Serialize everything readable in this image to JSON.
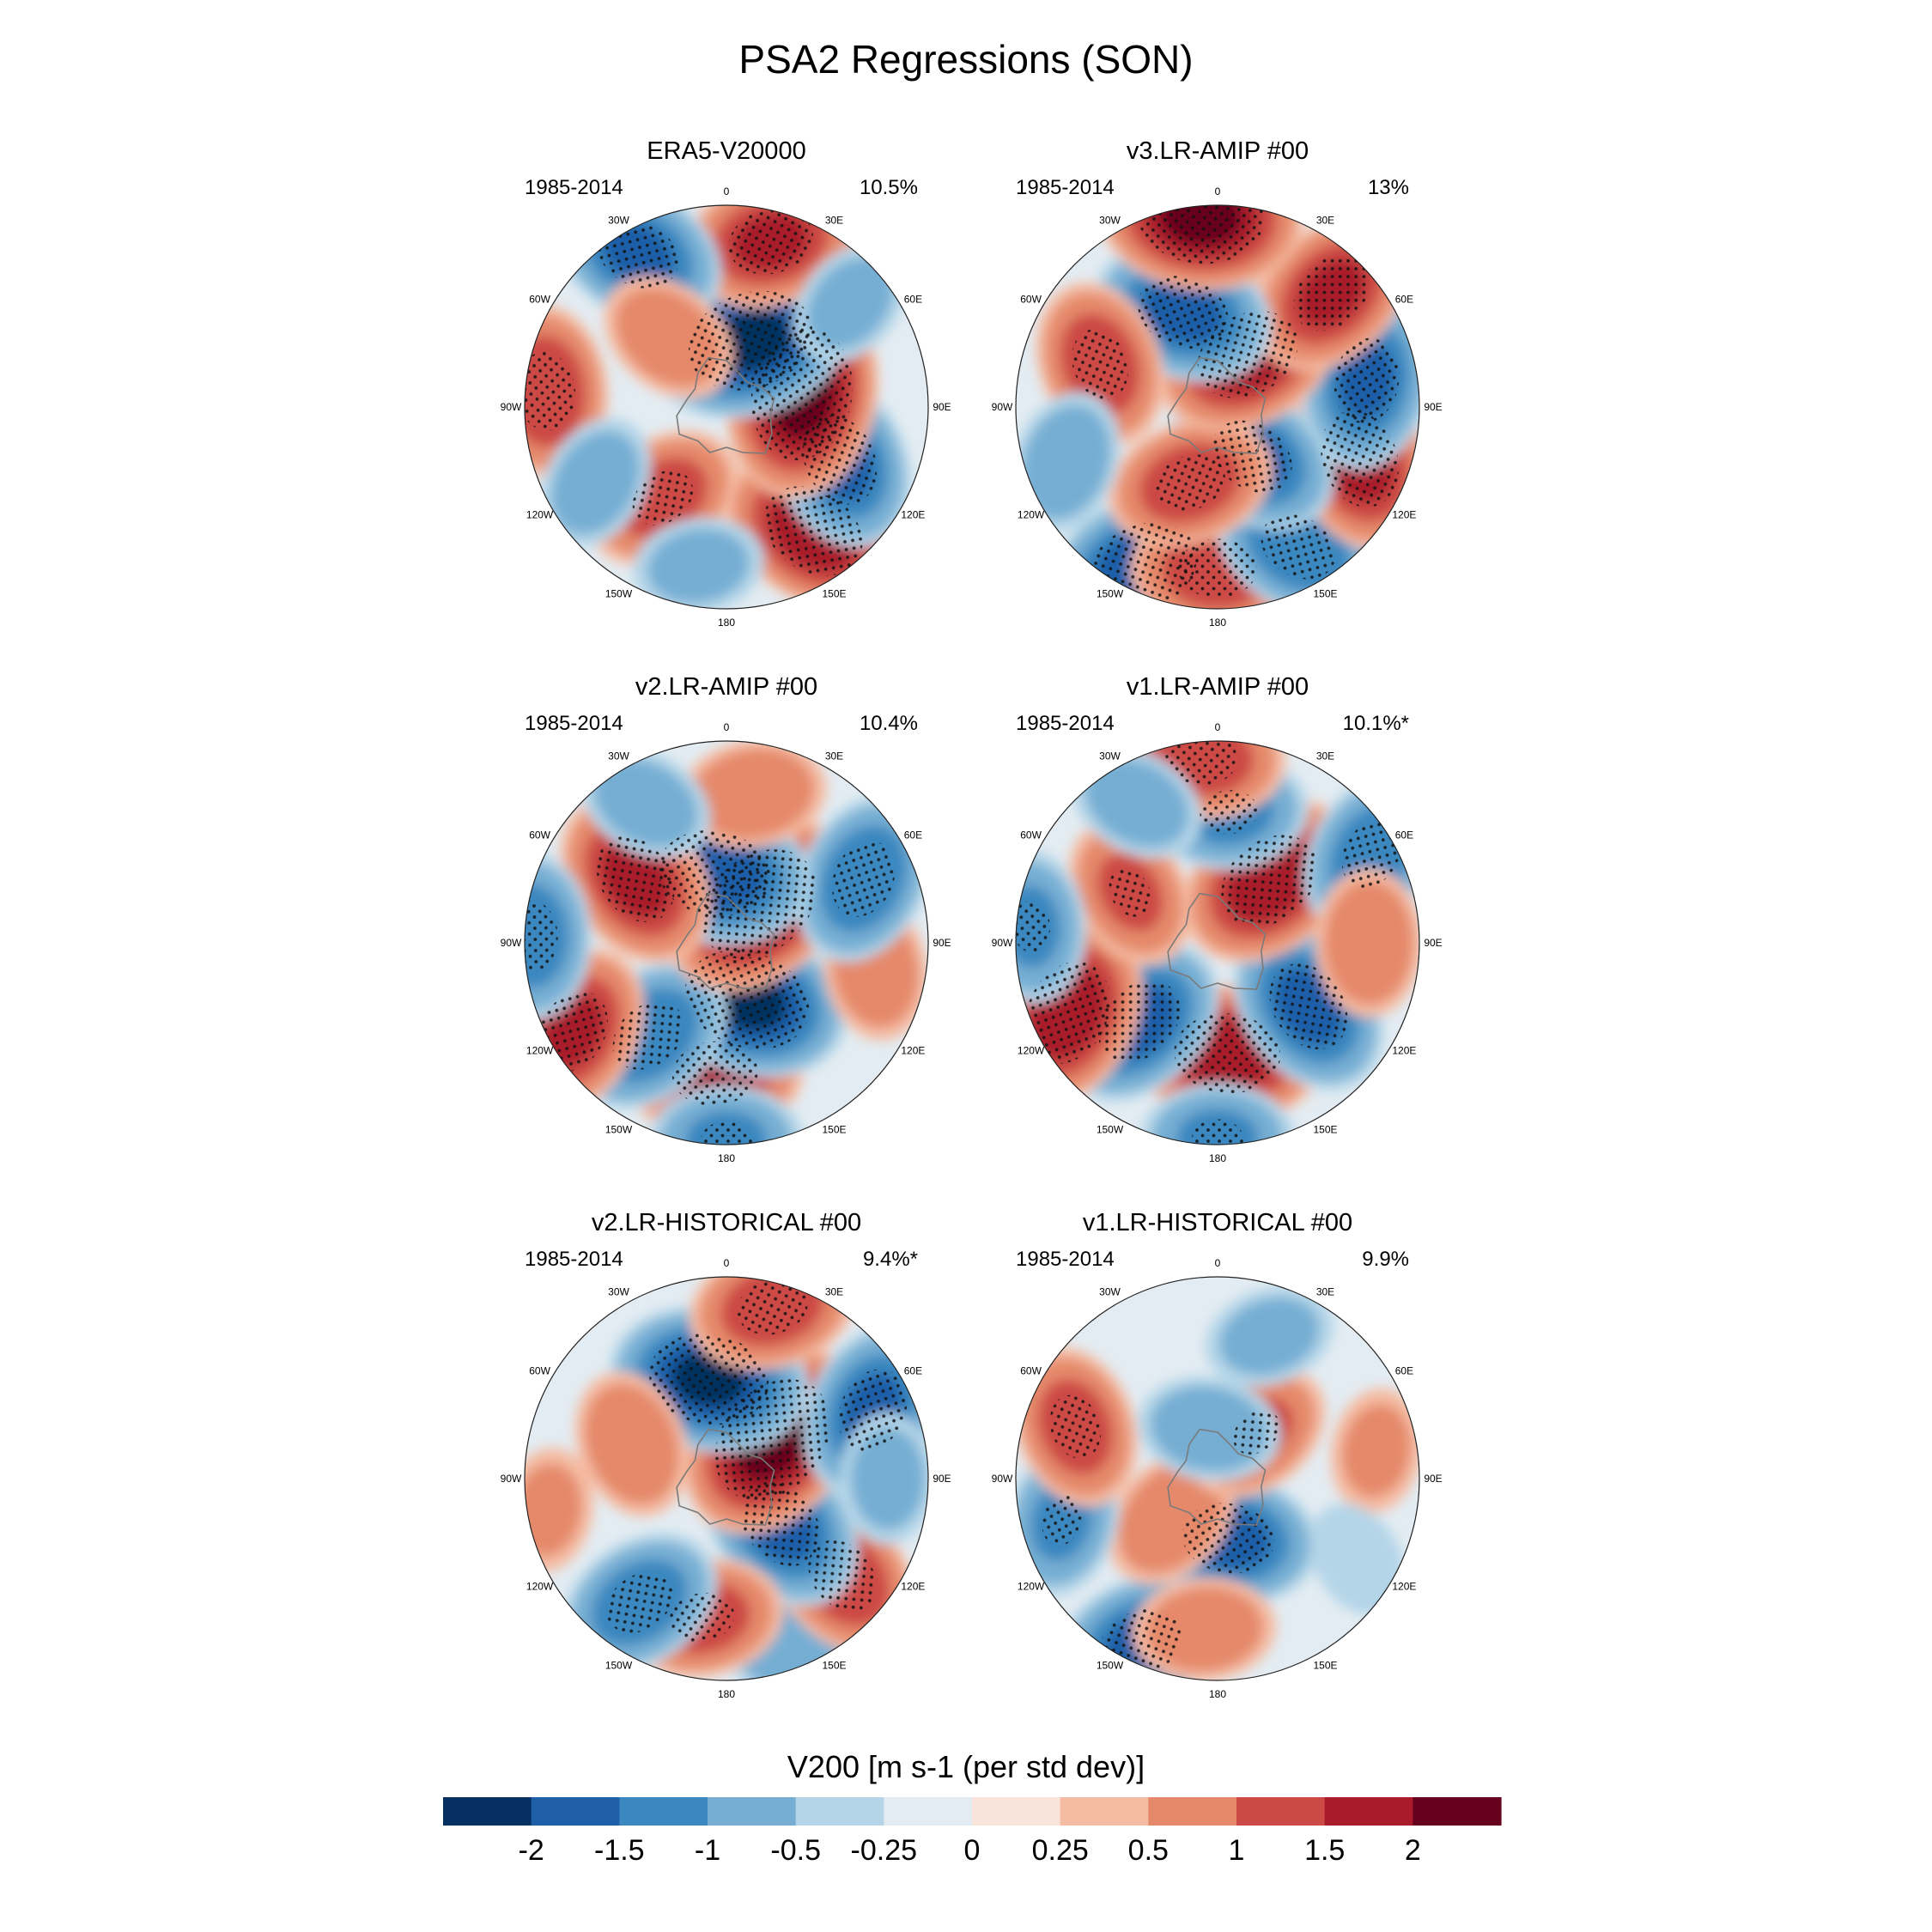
{
  "chart_data": {
    "type": "polar contour map panels",
    "title": "PSA2 Regressions (SON)",
    "colorbar": {
      "title": "V200 [m s-1 (per std dev)]",
      "ticks": [
        "-2",
        "-1.5",
        "-1",
        "-0.5",
        "-0.25",
        "0",
        "0.25",
        "0.5",
        "1",
        "1.5",
        "2"
      ],
      "levels": [
        -2,
        -1.5,
        -1,
        -0.5,
        -0.25,
        0,
        0.25,
        0.5,
        1,
        1.5,
        2
      ],
      "colors": [
        "#053061",
        "#1f5fa8",
        "#3b87bf",
        "#76aed3",
        "#b4d5e8",
        "#e3ecf2",
        "#f9e4dc",
        "#f5bca3",
        "#e5896a",
        "#cc4a45",
        "#a91b2b",
        "#67001f"
      ]
    },
    "longitude_labels": [
      "0",
      "30E",
      "60E",
      "90E",
      "120E",
      "150E",
      "180",
      "150W",
      "120W",
      "90W",
      "60W",
      "30W"
    ],
    "panels": [
      {
        "title": "ERA5-V20000",
        "period": "1985-2014",
        "variance": "10.5%",
        "anomalies": [
          {
            "lon": -35,
            "r": 0.75,
            "v": 1.8
          },
          {
            "lon": -65,
            "r": 0.62,
            "v": -1.6
          },
          {
            "lon": -100,
            "r": 0.38,
            "v": 2.2
          },
          {
            "lon": -160,
            "r": 0.35,
            "v": -2.1
          },
          {
            "lon": -165,
            "r": 0.85,
            "v": 1.5
          },
          {
            "lon": 35,
            "r": 0.55,
            "v": 1.2
          },
          {
            "lon": 95,
            "r": 0.9,
            "v": 1.4
          },
          {
            "lon": 150,
            "r": 0.88,
            "v": -1.5
          },
          {
            "lon": 140,
            "r": 0.45,
            "v": 0.8
          },
          {
            "lon": 10,
            "r": 0.8,
            "v": -0.6
          },
          {
            "lon": 60,
            "r": 0.75,
            "v": -0.7
          },
          {
            "lon": -130,
            "r": 0.8,
            "v": -0.6
          }
        ]
      },
      {
        "title": "v3.LR-AMIP  #00",
        "period": "1985-2014",
        "variance": "13%",
        "anomalies": [
          {
            "lon": 25,
            "r": 0.88,
            "v": -1.9
          },
          {
            "lon": 0,
            "r": 0.8,
            "v": 1.4
          },
          {
            "lon": -30,
            "r": 0.8,
            "v": -1.4
          },
          {
            "lon": -70,
            "r": 0.75,
            "v": 1.7
          },
          {
            "lon": -35,
            "r": 0.3,
            "v": -1.5
          },
          {
            "lon": 20,
            "r": 0.4,
            "v": 1.3
          },
          {
            "lon": -100,
            "r": 0.75,
            "v": -1.5
          },
          {
            "lon": -150,
            "r": 0.3,
            "v": 1.8
          },
          {
            "lon": -135,
            "r": 0.8,
            "v": 1.5
          },
          {
            "lon": 160,
            "r": 0.5,
            "v": -1.6
          },
          {
            "lon": 110,
            "r": 0.62,
            "v": 1.3
          },
          {
            "lon": 175,
            "r": 0.95,
            "v": 2.1
          },
          {
            "lon": 70,
            "r": 0.8,
            "v": -0.8
          }
        ]
      },
      {
        "title": "v2.LR-AMIP  #00",
        "period": "1985-2014",
        "variance": "10.4%",
        "anomalies": [
          {
            "lon": 5,
            "r": 0.65,
            "v": 1.5
          },
          {
            "lon": -20,
            "r": 0.3,
            "v": -2.1
          },
          {
            "lon": 40,
            "r": 0.6,
            "v": -1.4
          },
          {
            "lon": 60,
            "r": 0.88,
            "v": 1.5
          },
          {
            "lon": -80,
            "r": 0.75,
            "v": 0.8
          },
          {
            "lon": -140,
            "r": 0.25,
            "v": 2.1
          },
          {
            "lon": -115,
            "r": 0.75,
            "v": -1.4
          },
          {
            "lon": 170,
            "r": 0.35,
            "v": -1.9
          },
          {
            "lon": 125,
            "r": 0.55,
            "v": 1.6
          },
          {
            "lon": -170,
            "r": 0.75,
            "v": 0.9
          },
          {
            "lon": 150,
            "r": 0.8,
            "v": -0.7
          },
          {
            "lon": 92,
            "r": 0.97,
            "v": -1.3
          },
          {
            "lon": 0,
            "r": 0.98,
            "v": -1.0
          }
        ]
      },
      {
        "title": "v1.LR-AMIP  #00",
        "period": "1985-2014",
        "variance": "10.1%*",
        "anomalies": [
          {
            "lon": -5,
            "r": 0.55,
            "v": 1.8
          },
          {
            "lon": -55,
            "r": 0.55,
            "v": -1.6
          },
          {
            "lon": 45,
            "r": 0.55,
            "v": -1.6
          },
          {
            "lon": 65,
            "r": 0.82,
            "v": 1.8
          },
          {
            "lon": -140,
            "r": 0.4,
            "v": 1.8
          },
          {
            "lon": -120,
            "r": 0.88,
            "v": -1.3
          },
          {
            "lon": -175,
            "r": 0.65,
            "v": -1.1
          },
          {
            "lon": 120,
            "r": 0.5,
            "v": 1.0
          },
          {
            "lon": 175,
            "r": 0.92,
            "v": 1.3
          },
          {
            "lon": 95,
            "r": 0.93,
            "v": -1.0
          },
          {
            "lon": 0,
            "r": 0.97,
            "v": -1.0
          },
          {
            "lon": 150,
            "r": 0.8,
            "v": -0.7
          },
          {
            "lon": -90,
            "r": 0.75,
            "v": 0.9
          }
        ]
      },
      {
        "title": "v2.LR-HISTORICAL  #00",
        "period": "1985-2014",
        "variance": "9.4%*",
        "anomalies": [
          {
            "lon": -20,
            "r": 0.9,
            "v": -0.8
          },
          {
            "lon": -50,
            "r": 0.75,
            "v": 1.4
          },
          {
            "lon": -50,
            "r": 0.35,
            "v": -1.6
          },
          {
            "lon": 10,
            "r": 0.7,
            "v": 1.2
          },
          {
            "lon": 35,
            "r": 0.75,
            "v": -1.3
          },
          {
            "lon": -130,
            "r": 0.3,
            "v": 2.2
          },
          {
            "lon": -115,
            "r": 0.8,
            "v": -1.5
          },
          {
            "lon": 170,
            "r": 0.5,
            "v": -2.0
          },
          {
            "lon": -165,
            "r": 0.88,
            "v": 1.3
          },
          {
            "lon": 110,
            "r": 0.5,
            "v": 0.9
          },
          {
            "lon": 80,
            "r": 0.9,
            "v": 0.5
          },
          {
            "lon": -90,
            "r": 0.8,
            "v": -0.6
          }
        ]
      },
      {
        "title": "v1.LR-HISTORICAL  #00",
        "period": "1985-2014",
        "variance": "9.9%",
        "anomalies": [
          {
            "lon": 25,
            "r": 0.9,
            "v": -1.5
          },
          {
            "lon": -10,
            "r": 0.3,
            "v": -1.6
          },
          {
            "lon": 5,
            "r": 0.75,
            "v": 0.8
          },
          {
            "lon": 50,
            "r": 0.3,
            "v": 0.9
          },
          {
            "lon": 75,
            "r": 0.8,
            "v": -1.0
          },
          {
            "lon": 110,
            "r": 0.75,
            "v": 1.2
          },
          {
            "lon": -140,
            "r": 0.3,
            "v": 1.0
          },
          {
            "lon": 170,
            "r": 0.25,
            "v": -0.8
          },
          {
            "lon": -160,
            "r": 0.75,
            "v": -0.6
          },
          {
            "lon": -100,
            "r": 0.8,
            "v": 0.5
          },
          {
            "lon": -60,
            "r": 0.8,
            "v": -0.4
          }
        ]
      }
    ]
  }
}
